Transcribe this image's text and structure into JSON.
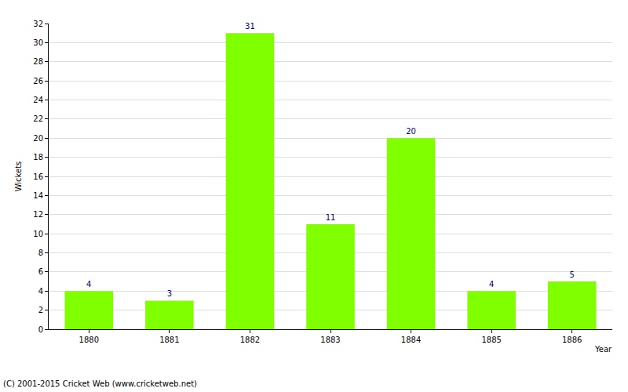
{
  "chart_data": {
    "type": "bar",
    "x_label": "Year",
    "y_label": "Wickets",
    "categories": [
      "1880",
      "1881",
      "1882",
      "1883",
      "1884",
      "1885",
      "1886"
    ],
    "values": [
      4,
      3,
      31,
      11,
      20,
      4,
      5
    ],
    "color": "#80ff00",
    "ylim": [
      0,
      32
    ],
    "yticks": [
      0,
      2,
      4,
      6,
      8,
      10,
      12,
      14,
      16,
      18,
      20,
      22,
      24,
      26,
      28,
      30,
      32
    ],
    "grid": true,
    "data_labels": true,
    "annotations": [
      "(C) 2001-2015 Cricket Web (www.cricketweb.net)"
    ]
  }
}
